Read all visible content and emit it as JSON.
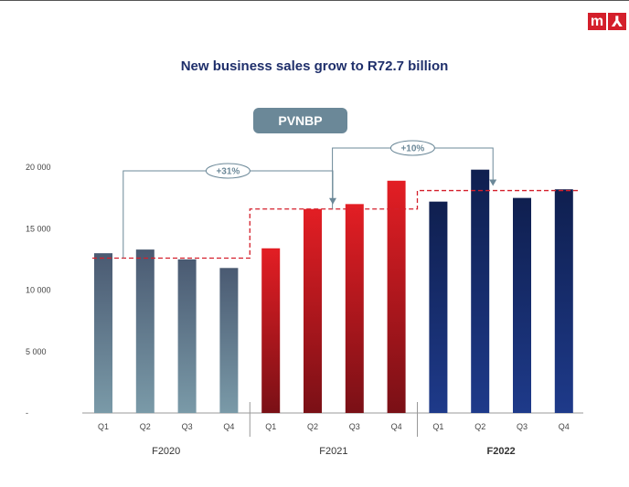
{
  "header": {
    "logo_left_glyph": "m",
    "logo_right_glyph": "⅄",
    "brand_color": "#d41f2b"
  },
  "slide": {
    "title": "New business sales grow to R72.7 billion",
    "badge": "PVNBP"
  },
  "chart_data": {
    "type": "bar",
    "title": "New business sales grow to R72.7 billion",
    "ylim": [
      0,
      22000
    ],
    "yticks": [
      {
        "value": 0,
        "label": "-"
      },
      {
        "value": 5000,
        "label": "5 000"
      },
      {
        "value": 10000,
        "label": "10 000"
      },
      {
        "value": 15000,
        "label": "15 000"
      },
      {
        "value": 20000,
        "label": "20 000"
      }
    ],
    "groups": [
      {
        "label": "F2020",
        "bold": false,
        "gradient": [
          "#4a5a72",
          "#7a9aa8"
        ],
        "average": 12600,
        "bars": [
          {
            "q": "Q1",
            "value": 13000
          },
          {
            "q": "Q2",
            "value": 13300
          },
          {
            "q": "Q3",
            "value": 12500
          },
          {
            "q": "Q4",
            "value": 11800
          }
        ]
      },
      {
        "label": "F2021",
        "bold": false,
        "gradient": [
          "#e31e24",
          "#7a1016"
        ],
        "average": 16600,
        "bars": [
          {
            "q": "Q1",
            "value": 13400
          },
          {
            "q": "Q2",
            "value": 16600
          },
          {
            "q": "Q3",
            "value": 17000
          },
          {
            "q": "Q4",
            "value": 18900
          }
        ]
      },
      {
        "label": "F2022",
        "bold": true,
        "gradient": [
          "#0f1f4f",
          "#1e3a8a"
        ],
        "average": 18100,
        "bars": [
          {
            "q": "Q1",
            "value": 17200
          },
          {
            "q": "Q2",
            "value": 19800
          },
          {
            "q": "Q3",
            "value": 17500
          },
          {
            "q": "Q4",
            "value": 18200
          }
        ]
      }
    ],
    "average_line_color": "#d41f2b",
    "annotations": [
      {
        "label": "+31%",
        "from_group": 0,
        "to_group": 1
      },
      {
        "label": "+10%",
        "from_group": 1,
        "to_group": 2
      }
    ],
    "annotation_color": "#6b8898"
  }
}
